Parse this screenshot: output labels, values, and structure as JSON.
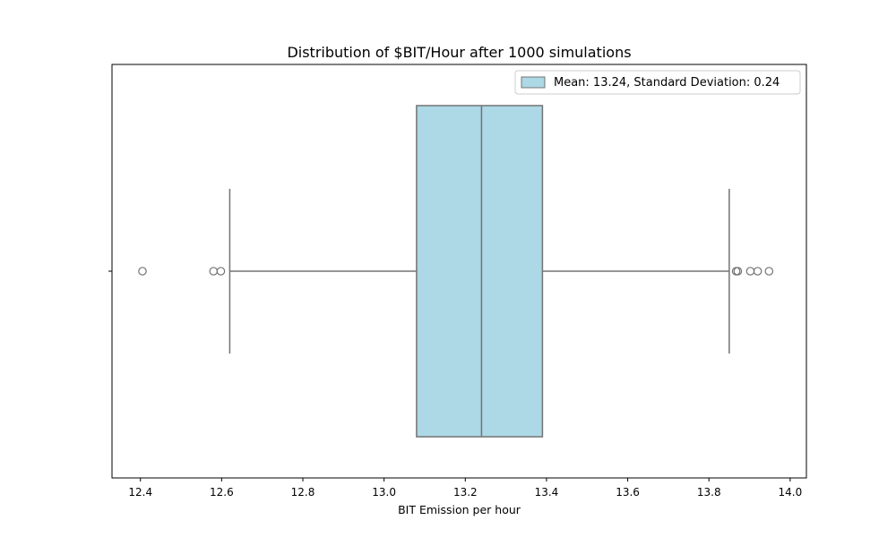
{
  "chart_data": {
    "type": "boxplot",
    "orientation": "horizontal",
    "title": "Distribution of $BIT/Hour after 1000 simulations",
    "xlabel": "BIT Emission per hour",
    "ylabel": "",
    "xlim": [
      12.33,
      14.04
    ],
    "xticks": [
      12.4,
      12.6,
      12.8,
      13.0,
      13.2,
      13.4,
      13.6,
      13.8,
      14.0
    ],
    "xtick_labels": [
      "12.4",
      "12.6",
      "12.8",
      "13.0",
      "13.2",
      "13.4",
      "13.6",
      "13.8",
      "14.0"
    ],
    "grid": false,
    "legend": {
      "position": "top-right",
      "entries": [
        "Mean: 13.24, Standard Deviation: 0.24"
      ]
    },
    "box": {
      "whisker_low": 12.62,
      "q1": 13.08,
      "median": 13.24,
      "q3": 13.39,
      "whisker_high": 13.85,
      "outliers": [
        12.405,
        12.58,
        12.598,
        13.867,
        13.871,
        13.902,
        13.92,
        13.948
      ]
    },
    "colors": {
      "box_fill": "#add8e6",
      "line": "#737373",
      "axes": "#000000"
    }
  }
}
